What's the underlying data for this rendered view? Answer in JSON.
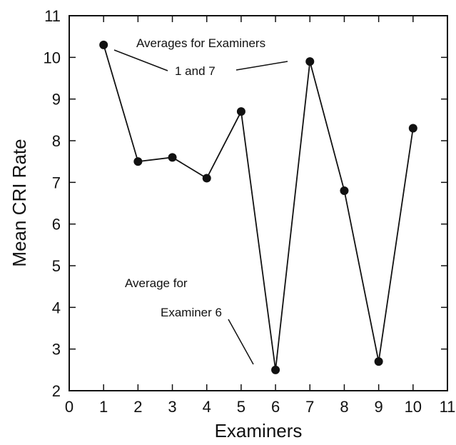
{
  "chart_data": {
    "type": "line",
    "xlabel": "Examiners",
    "ylabel": "Mean CRI Rate",
    "xlim": [
      0,
      11
    ],
    "ylim": [
      2,
      11
    ],
    "x_ticks": [
      "0",
      "1",
      "2",
      "3",
      "4",
      "5",
      "6",
      "7",
      "8",
      "9",
      "10",
      "11"
    ],
    "y_ticks": [
      "2",
      "3",
      "4",
      "5",
      "6",
      "7",
      "8",
      "9",
      "10",
      "11"
    ],
    "grid": false,
    "series": [
      {
        "x": [
          1,
          2,
          3,
          4,
          5,
          6,
          7,
          8,
          9,
          10
        ],
        "y": [
          10.3,
          7.5,
          7.6,
          7.1,
          8.7,
          2.5,
          9.9,
          6.8,
          2.7,
          8.3
        ]
      }
    ],
    "annotations": {
      "examiners_1_7": {
        "line1": "Averages for Examiners",
        "line2": "1 and 7"
      },
      "examiner_6": {
        "line1": "Average for",
        "line2": "Examiner 6"
      }
    },
    "colors": {
      "line": "#111111",
      "marker": "#111111"
    }
  }
}
